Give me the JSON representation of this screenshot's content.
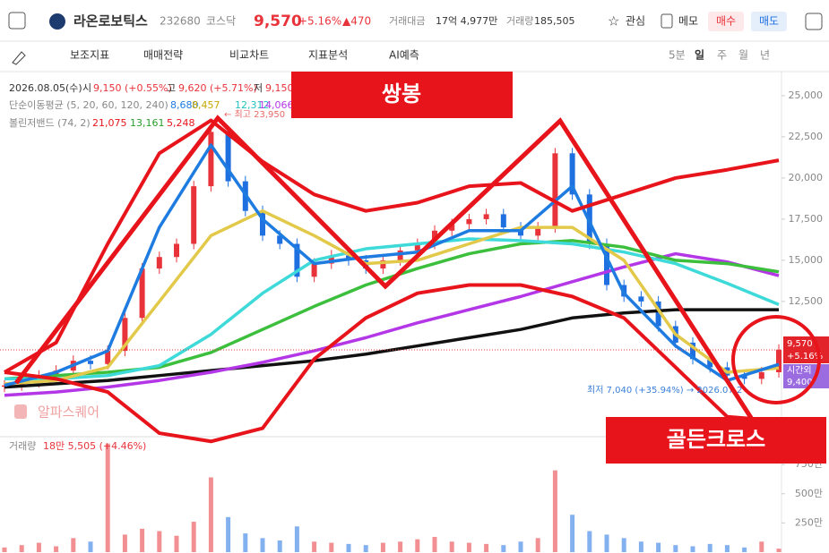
{
  "header": {
    "name": "라온로보틱스",
    "code": "232680",
    "market": "코스닥",
    "price": "9,570",
    "change_pct": "+5.16%",
    "change": "▲470",
    "amount_label": "거래대금",
    "amount": "17억 4,977만",
    "volume_label": "거래량",
    "volume": "185,505",
    "watch": "관심",
    "memo": "메모",
    "buy": "매수",
    "sell": "매도"
  },
  "toolbar": {
    "items": [
      "보조지표",
      "매매전략",
      "비교차트",
      "지표분석",
      "AI예측"
    ],
    "periods": [
      "5분",
      "일",
      "주",
      "월",
      "년"
    ]
  },
  "info": {
    "date": "2026.08.05(수)",
    "open_label": "시",
    "open": "9,150 (+0.55%)",
    "high_label": "고",
    "high": "9,620 (+5.71%)",
    "low_label": "저",
    "low": "9,150",
    "ma_label": "단순이동평균 (5, 20, 60, 120, 240)",
    "ma_values": [
      "8,680",
      "8,457",
      "12,312",
      "14,066"
    ],
    "bb_label": "볼린저밴드 (74, 2)",
    "bb_values": [
      "21,075",
      "13,161",
      "5,248"
    ],
    "max_note": "← 최고 23,950",
    "min_note": "최저 7,040 (+35.94%) → 2026.07.2",
    "watermark": "알파스퀘어"
  },
  "price_tag": {
    "price": "9,570",
    "pct": "+5.16%",
    "after_label": "시간외",
    "after": "9,400"
  },
  "annotations": {
    "double_top": "쌍봉",
    "golden_cross": "골든크로스"
  },
  "volume_info": {
    "label": "거래량",
    "value": "18만 5,505 (+4.46%)"
  },
  "chart_data": {
    "type": "candlestick",
    "up_color": "#e8333a",
    "down_color": "#1e6fe0",
    "ylim": [
      4450,
      25920
    ],
    "yticks": [
      {
        "value": 12500,
        "label": "12,500"
      },
      {
        "value": 15000,
        "label": "15,000"
      },
      {
        "value": 17500,
        "label": "17,500"
      },
      {
        "value": 20000,
        "label": "20,000"
      },
      {
        "value": 22500,
        "label": "22,500"
      },
      {
        "value": 25000,
        "label": "25,000"
      }
    ],
    "close": [
      7400,
      7600,
      8000,
      8300,
      8900,
      8700,
      9500,
      11500,
      14500,
      15200,
      16000,
      19500,
      22800,
      19800,
      18000,
      16500,
      16000,
      14000,
      14800,
      15300,
      15000,
      14500,
      15000,
      15600,
      16000,
      16800,
      17200,
      17500,
      17800,
      17000,
      16500,
      17000,
      21500,
      19000,
      16000,
      13500,
      12800,
      12500,
      11000,
      10000,
      9000,
      8500,
      8000,
      7800,
      8200,
      9570
    ],
    "volume": [
      40,
      60,
      80,
      50,
      120,
      90,
      930,
      150,
      200,
      180,
      140,
      260,
      640,
      300,
      160,
      120,
      100,
      220,
      90,
      80,
      70,
      60,
      80,
      90,
      110,
      130,
      90,
      80,
      70,
      60,
      90,
      120,
      700,
      320,
      180,
      150,
      120,
      90,
      80,
      60,
      50,
      70,
      60,
      40,
      90,
      30
    ],
    "vlim": [
      0,
      935
    ],
    "vticks": [
      {
        "value": 250,
        "label": "250만"
      },
      {
        "value": 500,
        "label": "500만"
      },
      {
        "value": 750,
        "label": "750만"
      }
    ],
    "lines": [
      {
        "color": "#111111",
        "values": [
          7300,
          7500,
          7700,
          8000,
          8300,
          8600,
          8900,
          9300,
          9800,
          10300,
          10800,
          11500,
          11800,
          12000,
          12000,
          12000
        ]
      },
      {
        "color": "#b337e6",
        "values": [
          6800,
          7000,
          7300,
          7700,
          8200,
          8800,
          9500,
          10300,
          11200,
          12000,
          12800,
          13700,
          14600,
          15400,
          14900,
          14066
        ]
      },
      {
        "color": "#3cbf3c",
        "values": [
          7800,
          8000,
          8200,
          8500,
          9400,
          10800,
          12200,
          13500,
          14500,
          15400,
          16000,
          16200,
          15800,
          15000,
          14800,
          14300
        ]
      },
      {
        "color": "#3ed9d9",
        "values": [
          7800,
          7800,
          8000,
          8600,
          10500,
          13000,
          15000,
          15700,
          16000,
          16300,
          16200,
          16000,
          15500,
          14800,
          13600,
          12312
        ]
      },
      {
        "color": "#e3c94a",
        "values": [
          7500,
          7700,
          8500,
          12500,
          16500,
          18000,
          16500,
          14800,
          15000,
          16000,
          17000,
          17000,
          15000,
          10500,
          8200,
          8457
        ]
      },
      {
        "color": "#1e7be0",
        "values": [
          7400,
          8200,
          9500,
          17000,
          22000,
          17500,
          14800,
          15200,
          15500,
          16800,
          16800,
          19500,
          13000,
          9800,
          7700,
          8680
        ]
      },
      {
        "color": "#e8141b",
        "values": [
          8200,
          10000,
          16000,
          21500,
          23500,
          21000,
          19000,
          18000,
          18500,
          19500,
          19700,
          18000,
          19000,
          20000,
          20500,
          21075
        ]
      },
      {
        "color": "#e8141b",
        "values": [
          8200,
          7800,
          7000,
          4500,
          4000,
          4800,
          9000,
          11500,
          13000,
          13500,
          13500,
          12800,
          11500,
          8500,
          5500,
          5248
        ]
      }
    ]
  }
}
